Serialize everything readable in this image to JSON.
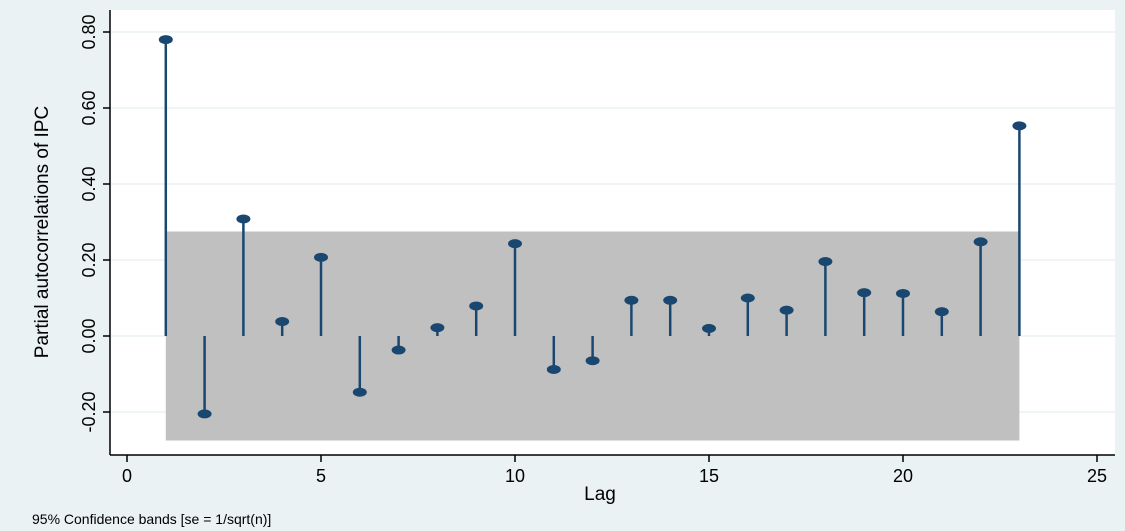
{
  "chart_data": {
    "type": "stem",
    "ylabel": "Partial autocorrelations of IPC",
    "xlabel": "Lag",
    "note": "95% Confidence bands [se = 1/sqrt(n)]",
    "xlim": [
      0,
      25
    ],
    "ylim": [
      -0.28,
      0.8
    ],
    "xticks": [
      0,
      5,
      10,
      15,
      20,
      25
    ],
    "yticks": [
      -0.2,
      0,
      0.2,
      0.4,
      0.6,
      0.8
    ],
    "ytick_labels": [
      "-0.20",
      "0.00",
      "0.20",
      "0.40",
      "0.60",
      "0.80"
    ],
    "confidence_band": {
      "lower": -0.275,
      "upper": 0.275,
      "x_from": 1,
      "x_to": 23
    },
    "grid": true,
    "colors": {
      "marker": "#1a476f",
      "band": "#c0c0c0",
      "grid": "#eaf2f3",
      "plot_bg": "#ffffff",
      "outer_bg": "#eaf2f3"
    },
    "lags": [
      1,
      2,
      3,
      4,
      5,
      6,
      7,
      8,
      9,
      10,
      11,
      12,
      13,
      14,
      15,
      16,
      17,
      18,
      19,
      20,
      21,
      22,
      23
    ],
    "values": [
      0.78,
      -0.205,
      0.308,
      0.038,
      0.207,
      -0.148,
      -0.037,
      0.022,
      0.079,
      0.243,
      -0.088,
      -0.065,
      0.094,
      0.094,
      0.02,
      0.1,
      0.068,
      0.196,
      0.114,
      0.112,
      0.064,
      0.248,
      0.553
    ]
  }
}
